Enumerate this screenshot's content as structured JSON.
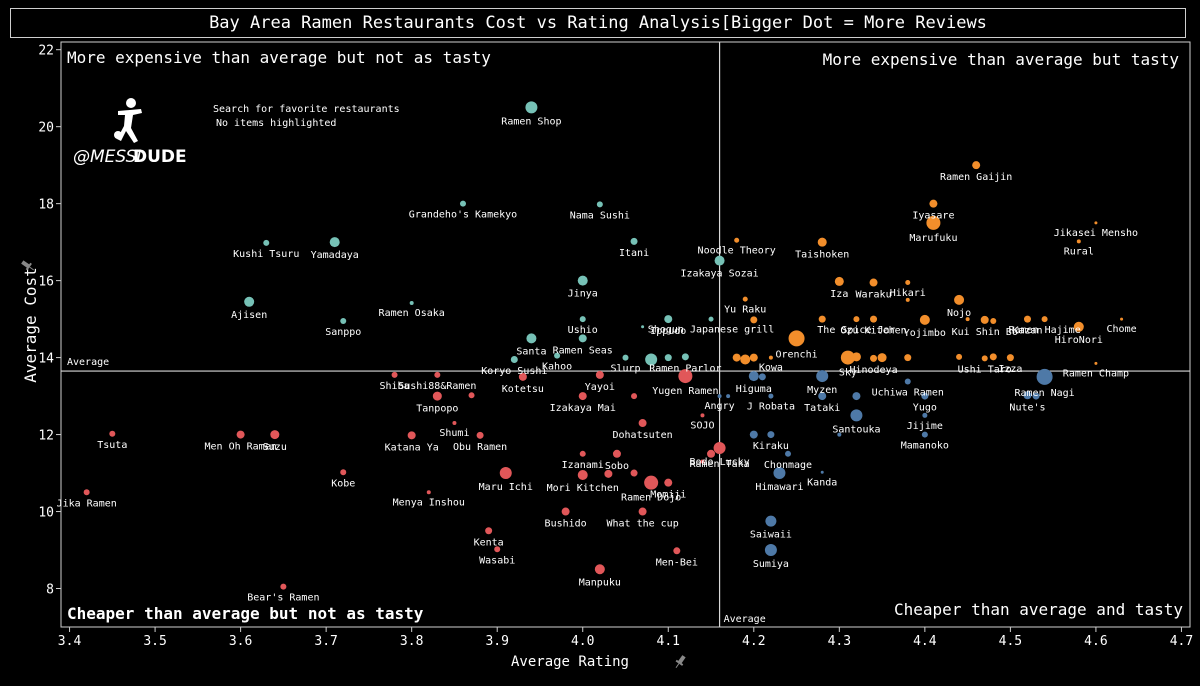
{
  "chart_data": {
    "type": "scatter",
    "title": "Bay Area Ramen Restaurants Cost vs Rating Analysis[Bigger Dot = More Reviews",
    "xlabel": "Average Rating",
    "ylabel": "Average Cost",
    "xlim": [
      3.39,
      4.71
    ],
    "ylim": [
      7.0,
      22.2
    ],
    "x_ticks": [
      3.4,
      3.5,
      3.6,
      3.7,
      3.8,
      3.9,
      4.0,
      4.1,
      4.2,
      4.3,
      4.4,
      4.5,
      4.6,
      4.7
    ],
    "y_ticks": [
      8,
      10,
      12,
      14,
      16,
      18,
      20,
      22
    ],
    "grid": false,
    "average": {
      "x": 4.16,
      "y": 13.65,
      "x_label": "Average",
      "y_label": "Average"
    },
    "quadrant_labels": {
      "top_left": "More expensive than average but not as tasty",
      "top_right": "More expensive than average but tasty",
      "bottom_left": "Cheaper than average but not as tasty",
      "bottom_right": "Cheaper than average and tasty"
    },
    "search_text": "Search for favorite restaurants",
    "highlight_text": "No items highlighted",
    "logo": {
      "text_light": "@MESSI",
      "text_bold": "DUDE"
    },
    "colors": {
      "expensive_not_tasty": "#76c1b6",
      "expensive_tasty": "#f28e2b",
      "cheap_not_tasty": "#e15759",
      "cheap_tasty": "#4e79a7",
      "reference": "#d8d8d8"
    },
    "points": [
      {
        "name": "Ramen Shop",
        "x": 3.94,
        "y": 20.5,
        "s": 6,
        "q": "a"
      },
      {
        "name": "Nama Sushi",
        "x": 4.02,
        "y": 17.98,
        "s": 3,
        "q": "a"
      },
      {
        "name": "Grandeho's Kamekyo",
        "x": 3.86,
        "y": 18.0,
        "s": 3,
        "q": "a"
      },
      {
        "name": "Kushi Tsuru",
        "x": 3.63,
        "y": 16.98,
        "s": 3,
        "q": "a"
      },
      {
        "name": "Yamadaya",
        "x": 3.71,
        "y": 17.0,
        "s": 5,
        "q": "a"
      },
      {
        "name": "Itani",
        "x": 4.06,
        "y": 17.02,
        "s": 3.5,
        "q": "a"
      },
      {
        "name": "Izakaya Sozai",
        "x": 4.16,
        "y": 16.52,
        "s": 5,
        "q": "a"
      },
      {
        "name": "Jinya",
        "x": 4.0,
        "y": 16.0,
        "s": 5,
        "q": "a"
      },
      {
        "name": "Ajisen",
        "x": 3.61,
        "y": 15.45,
        "s": 5,
        "q": "a"
      },
      {
        "name": "Ramen Osaka",
        "x": 3.8,
        "y": 15.42,
        "s": 2,
        "q": "a"
      },
      {
        "name": "Sanppo",
        "x": 3.72,
        "y": 14.95,
        "s": 3,
        "q": "a"
      },
      {
        "name": "Ushio",
        "x": 4.0,
        "y": 15.0,
        "s": 3,
        "q": "a"
      },
      {
        "name": "Ippudo",
        "x": 4.1,
        "y": 15.0,
        "s": 4,
        "q": "a"
      },
      {
        "name": "Shogun Japanese grill",
        "x": 4.15,
        "y": 15.0,
        "s": 2.5,
        "q": "a"
      },
      {
        "name": "Santa",
        "x": 3.94,
        "y": 14.5,
        "s": 5,
        "q": "a"
      },
      {
        "name": "Ramen Seas",
        "x": 4.0,
        "y": 14.5,
        "s": 4,
        "q": "a"
      },
      {
        "name": "Kahoo",
        "x": 3.97,
        "y": 14.05,
        "s": 3,
        "q": "a"
      },
      {
        "name": "Koryo Sushi",
        "x": 3.92,
        "y": 13.95,
        "s": 3.5,
        "q": "a"
      },
      {
        "name": "Slurp",
        "x": 4.05,
        "y": 14.0,
        "s": 3,
        "q": "a"
      },
      {
        "name": "",
        "x": 4.08,
        "y": 13.95,
        "s": 6,
        "q": "a"
      },
      {
        "name": "",
        "x": 4.1,
        "y": 14.0,
        "s": 3.5,
        "q": "a"
      },
      {
        "name": "Ramen Parlor",
        "x": 4.12,
        "y": 14.02,
        "s": 3.5,
        "q": "a"
      },
      {
        "name": "",
        "x": 4.07,
        "y": 14.8,
        "s": 1.5,
        "q": "a"
      },
      {
        "name": "Ramen Gaijin",
        "x": 4.46,
        "y": 19.0,
        "s": 4,
        "q": "b"
      },
      {
        "name": "Iyasare",
        "x": 4.41,
        "y": 18.0,
        "s": 4,
        "q": "b"
      },
      {
        "name": "Marufuku",
        "x": 4.41,
        "y": 17.5,
        "s": 7,
        "q": "b"
      },
      {
        "name": "Jikasei Mensho",
        "x": 4.6,
        "y": 17.5,
        "s": 1.5,
        "q": "b"
      },
      {
        "name": "Rural",
        "x": 4.58,
        "y": 17.02,
        "s": 2,
        "q": "b"
      },
      {
        "name": "Noodle Theory",
        "x": 4.18,
        "y": 17.05,
        "s": 2.5,
        "q": "b"
      },
      {
        "name": "Taishoken",
        "x": 4.28,
        "y": 17.0,
        "s": 4.5,
        "q": "b"
      },
      {
        "name": "Iza",
        "x": 4.3,
        "y": 15.98,
        "s": 4.5,
        "q": "b"
      },
      {
        "name": "Waraku",
        "x": 4.34,
        "y": 15.95,
        "s": 4,
        "q": "b"
      },
      {
        "name": "Hikari",
        "x": 4.38,
        "y": 15.95,
        "s": 2.5,
        "q": "b"
      },
      {
        "name": "",
        "x": 4.38,
        "y": 15.5,
        "s": 2,
        "q": "b"
      },
      {
        "name": "Yu Raku",
        "x": 4.19,
        "y": 15.52,
        "s": 2.5,
        "q": "b"
      },
      {
        "name": "Nojo",
        "x": 4.44,
        "y": 15.5,
        "s": 5,
        "q": "b"
      },
      {
        "name": "Kazan",
        "x": 4.52,
        "y": 15.0,
        "s": 3.5,
        "q": "b"
      },
      {
        "name": "Ramen Hajime",
        "x": 4.54,
        "y": 15.0,
        "s": 3,
        "q": "b"
      },
      {
        "name": "Chome",
        "x": 4.63,
        "y": 15.0,
        "s": 1.5,
        "q": "b"
      },
      {
        "name": "HiroNori",
        "x": 4.58,
        "y": 14.8,
        "s": 5,
        "q": "b"
      },
      {
        "name": "Ozu Kitchen",
        "x": 4.34,
        "y": 15.0,
        "s": 3.5,
        "q": "b"
      },
      {
        "name": "The Spice Jar",
        "x": 4.32,
        "y": 15.0,
        "s": 3,
        "q": "b"
      },
      {
        "name": "Yojimbo",
        "x": 4.4,
        "y": 14.98,
        "s": 5,
        "q": "b"
      },
      {
        "name": "Kui Shin Bo",
        "x": 4.47,
        "y": 14.98,
        "s": 4,
        "q": "b"
      },
      {
        "name": "",
        "x": 4.45,
        "y": 15.0,
        "s": 2,
        "q": "b"
      },
      {
        "name": "",
        "x": 4.48,
        "y": 14.95,
        "s": 3,
        "q": "b"
      },
      {
        "name": "",
        "x": 4.28,
        "y": 15.0,
        "s": 3.5,
        "q": "b"
      },
      {
        "name": "",
        "x": 4.2,
        "y": 14.98,
        "s": 3.5,
        "q": "b"
      },
      {
        "name": "Orenchi",
        "x": 4.25,
        "y": 14.5,
        "s": 8,
        "q": "b"
      },
      {
        "name": "",
        "x": 4.18,
        "y": 14.0,
        "s": 4,
        "q": "b"
      },
      {
        "name": "",
        "x": 4.19,
        "y": 13.95,
        "s": 5,
        "q": "b"
      },
      {
        "name": "",
        "x": 4.2,
        "y": 14.0,
        "s": 4,
        "q": "b"
      },
      {
        "name": "Kowa",
        "x": 4.22,
        "y": 14.0,
        "s": 2,
        "q": "b"
      },
      {
        "name": "Sky",
        "x": 4.31,
        "y": 14.0,
        "s": 7,
        "q": "b"
      },
      {
        "name": "",
        "x": 4.32,
        "y": 14.02,
        "s": 4.5,
        "q": "b"
      },
      {
        "name": "Hinodeya",
        "x": 4.34,
        "y": 13.98,
        "s": 3.5,
        "q": "b"
      },
      {
        "name": "",
        "x": 4.35,
        "y": 14.0,
        "s": 4.5,
        "q": "b"
      },
      {
        "name": "",
        "x": 4.38,
        "y": 14.0,
        "s": 3.5,
        "q": "b"
      },
      {
        "name": "",
        "x": 4.44,
        "y": 14.02,
        "s": 3,
        "q": "b"
      },
      {
        "name": "Ushi Taro",
        "x": 4.47,
        "y": 13.98,
        "s": 3,
        "q": "b"
      },
      {
        "name": "",
        "x": 4.48,
        "y": 14.02,
        "s": 3.5,
        "q": "b"
      },
      {
        "name": "Izza",
        "x": 4.5,
        "y": 14.0,
        "s": 3.5,
        "q": "b"
      },
      {
        "name": "Ramen Champ",
        "x": 4.6,
        "y": 13.85,
        "s": 1.5,
        "q": "b"
      },
      {
        "name": "Sushi88&Ramen",
        "x": 3.83,
        "y": 13.55,
        "s": 3,
        "q": "c"
      },
      {
        "name": "Shiba",
        "x": 3.78,
        "y": 13.55,
        "s": 3,
        "q": "c"
      },
      {
        "name": "Kotetsu",
        "x": 3.93,
        "y": 13.5,
        "s": 4,
        "q": "c"
      },
      {
        "name": "Yayoi",
        "x": 4.02,
        "y": 13.55,
        "s": 4,
        "q": "c"
      },
      {
        "name": "Yugen Ramen",
        "x": 4.12,
        "y": 13.52,
        "s": 7,
        "q": "c"
      },
      {
        "name": "Tanpopo",
        "x": 3.83,
        "y": 13.0,
        "s": 4.5,
        "q": "c"
      },
      {
        "name": "",
        "x": 3.87,
        "y": 13.02,
        "s": 3,
        "q": "c"
      },
      {
        "name": "Izakaya Mai",
        "x": 4.0,
        "y": 13.0,
        "s": 4,
        "q": "c"
      },
      {
        "name": "",
        "x": 4.06,
        "y": 13.0,
        "s": 3,
        "q": "c"
      },
      {
        "name": "Shumi",
        "x": 3.85,
        "y": 12.3,
        "s": 2,
        "q": "c"
      },
      {
        "name": "Katana Ya",
        "x": 3.8,
        "y": 11.98,
        "s": 4,
        "q": "c"
      },
      {
        "name": "Obu Ramen",
        "x": 3.88,
        "y": 11.98,
        "s": 3.5,
        "q": "c"
      },
      {
        "name": "Men Oh Ramen",
        "x": 3.6,
        "y": 12.0,
        "s": 4,
        "q": "c"
      },
      {
        "name": "Suzu",
        "x": 3.64,
        "y": 12.0,
        "s": 4.5,
        "q": "c"
      },
      {
        "name": "Tsuta",
        "x": 3.45,
        "y": 12.02,
        "s": 3,
        "q": "c"
      },
      {
        "name": "Dohatsuten",
        "x": 4.07,
        "y": 12.3,
        "s": 4,
        "q": "c"
      },
      {
        "name": "SOJO",
        "x": 4.14,
        "y": 12.5,
        "s": 2,
        "q": "c"
      },
      {
        "name": "Sobo",
        "x": 4.04,
        "y": 11.5,
        "s": 4,
        "q": "c"
      },
      {
        "name": "Izanami",
        "x": 4.0,
        "y": 11.5,
        "s": 3,
        "q": "c"
      },
      {
        "name": "Bodo Lucky",
        "x": 4.16,
        "y": 11.65,
        "s": 6,
        "q": "c"
      },
      {
        "name": "",
        "x": 4.15,
        "y": 11.5,
        "s": 4,
        "q": "c"
      },
      {
        "name": "",
        "x": 4.14,
        "y": 11.3,
        "s": 2,
        "q": "c"
      },
      {
        "name": "Kobe",
        "x": 3.72,
        "y": 11.02,
        "s": 3,
        "q": "c"
      },
      {
        "name": "Maru Ichi",
        "x": 3.91,
        "y": 11.0,
        "s": 6,
        "q": "c"
      },
      {
        "name": "Mori Kitchen",
        "x": 4.0,
        "y": 10.95,
        "s": 5,
        "q": "c"
      },
      {
        "name": "",
        "x": 4.03,
        "y": 10.98,
        "s": 4,
        "q": "c"
      },
      {
        "name": "",
        "x": 4.06,
        "y": 11.0,
        "s": 3.5,
        "q": "c"
      },
      {
        "name": "Ramen Dojo",
        "x": 4.08,
        "y": 10.75,
        "s": 7,
        "q": "c"
      },
      {
        "name": "Momiji",
        "x": 4.1,
        "y": 10.75,
        "s": 4,
        "q": "c"
      },
      {
        "name": "Menya Inshou",
        "x": 3.82,
        "y": 10.5,
        "s": 2,
        "q": "c"
      },
      {
        "name": "Jika Ramen",
        "x": 3.42,
        "y": 10.5,
        "s": 3,
        "q": "c"
      },
      {
        "name": "Bushido",
        "x": 3.98,
        "y": 10.0,
        "s": 4,
        "q": "c"
      },
      {
        "name": "What the cup",
        "x": 4.07,
        "y": 10.0,
        "s": 4,
        "q": "c"
      },
      {
        "name": "Kenta",
        "x": 3.89,
        "y": 9.5,
        "s": 3.5,
        "q": "c"
      },
      {
        "name": "Wasabi",
        "x": 3.9,
        "y": 9.02,
        "s": 3,
        "q": "c"
      },
      {
        "name": "Men-Bei",
        "x": 4.11,
        "y": 8.98,
        "s": 3.5,
        "q": "c"
      },
      {
        "name": "Manpuku",
        "x": 4.02,
        "y": 8.5,
        "s": 5,
        "q": "c"
      },
      {
        "name": "Bear's Ramen",
        "x": 3.65,
        "y": 8.05,
        "s": 3,
        "q": "c"
      },
      {
        "name": "Ramen Taka",
        "x": 4.16,
        "y": 11.5,
        "s": 0,
        "q": "c"
      },
      {
        "name": "Myzen",
        "x": 4.28,
        "y": 13.52,
        "s": 6,
        "q": "d"
      },
      {
        "name": "Higuma",
        "x": 4.2,
        "y": 13.52,
        "s": 5,
        "q": "d"
      },
      {
        "name": "",
        "x": 4.21,
        "y": 13.5,
        "s": 3.5,
        "q": "d"
      },
      {
        "name": "Uchiwa Ramen",
        "x": 4.38,
        "y": 13.38,
        "s": 3,
        "q": "d"
      },
      {
        "name": "Ramen Nagi",
        "x": 4.54,
        "y": 13.5,
        "s": 8,
        "q": "d"
      },
      {
        "name": "J Robata",
        "x": 4.22,
        "y": 13.0,
        "s": 2.5,
        "q": "d"
      },
      {
        "name": "Angry",
        "x": 4.16,
        "y": 13.0,
        "s": 2,
        "q": "d"
      },
      {
        "name": "",
        "x": 4.17,
        "y": 13.0,
        "s": 2,
        "q": "d"
      },
      {
        "name": "Tataki",
        "x": 4.28,
        "y": 13.0,
        "s": 4,
        "q": "d"
      },
      {
        "name": "",
        "x": 4.32,
        "y": 13.0,
        "s": 4,
        "q": "d"
      },
      {
        "name": "Yugo",
        "x": 4.4,
        "y": 13.0,
        "s": 3.5,
        "q": "d"
      },
      {
        "name": "Nute's",
        "x": 4.52,
        "y": 13.02,
        "s": 4,
        "q": "d"
      },
      {
        "name": "",
        "x": 4.53,
        "y": 13.0,
        "s": 3.5,
        "q": "d"
      },
      {
        "name": "Jijime",
        "x": 4.4,
        "y": 12.5,
        "s": 2.5,
        "q": "d"
      },
      {
        "name": "Santouka",
        "x": 4.32,
        "y": 12.5,
        "s": 6,
        "q": "d"
      },
      {
        "name": "Kiraku",
        "x": 4.22,
        "y": 12.0,
        "s": 3.5,
        "q": "d"
      },
      {
        "name": "",
        "x": 4.2,
        "y": 12.0,
        "s": 4,
        "q": "d"
      },
      {
        "name": "",
        "x": 4.3,
        "y": 12.0,
        "s": 2,
        "q": "d"
      },
      {
        "name": "Mamanoko",
        "x": 4.4,
        "y": 12.0,
        "s": 3,
        "q": "d"
      },
      {
        "name": "Chonmage",
        "x": 4.24,
        "y": 11.5,
        "s": 3,
        "q": "d"
      },
      {
        "name": "Himawari",
        "x": 4.23,
        "y": 11.0,
        "s": 6,
        "q": "d"
      },
      {
        "name": "Kanda",
        "x": 4.28,
        "y": 11.02,
        "s": 1.5,
        "q": "d"
      },
      {
        "name": "Saiwaii",
        "x": 4.22,
        "y": 9.75,
        "s": 5.5,
        "q": "d"
      },
      {
        "name": "Sumiya",
        "x": 4.22,
        "y": 9.0,
        "s": 6,
        "q": "d"
      }
    ]
  }
}
